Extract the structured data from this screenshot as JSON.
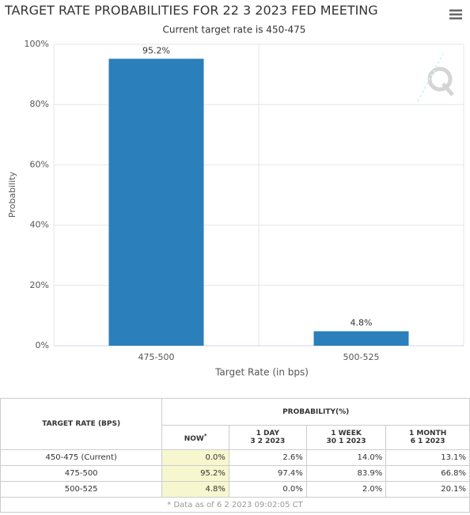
{
  "chart_data": {
    "type": "bar",
    "title": "TARGET RATE PROBABILITIES FOR 22 3 2023 FED MEETING",
    "subtitle": "Current target rate is 450-475",
    "x_label": "Target Rate (in bps)",
    "y_label": "Probability",
    "categories": [
      "475-500",
      "500-525"
    ],
    "values": [
      95.2,
      4.8
    ],
    "value_labels": [
      "95.2%",
      "4.8%"
    ],
    "color": "#2b7fba",
    "ylim": [
      0,
      100
    ],
    "yticks": [
      {
        "value": 0,
        "label": "0%"
      },
      {
        "value": 20,
        "label": "20%"
      },
      {
        "value": 40,
        "label": "40%"
      },
      {
        "value": 60,
        "label": "60%"
      },
      {
        "value": 80,
        "label": "80%"
      },
      {
        "value": 100,
        "label": "100%"
      }
    ],
    "grid": true
  },
  "table": {
    "row_header": "TARGET RATE (BPS)",
    "group_header": "PROBABILITY(%)",
    "columns": [
      {
        "label": "NOW",
        "mark": "*"
      },
      {
        "label": "1 DAY",
        "date": "3 2 2023"
      },
      {
        "label": "1 WEEK",
        "date": "30 1 2023"
      },
      {
        "label": "1 MONTH",
        "date": "6 1 2023"
      }
    ],
    "rows": [
      [
        "450-475 (Current)",
        "0.0%",
        "2.6%",
        "14.0%",
        "13.1%"
      ],
      [
        "475-500",
        "95.2%",
        "97.4%",
        "83.9%",
        "66.8%"
      ],
      [
        "500-525",
        "4.8%",
        "0.0%",
        "2.0%",
        "20.1%"
      ]
    ],
    "footnote": "* Data as of 6 2 2023 09:02:05 CT"
  }
}
